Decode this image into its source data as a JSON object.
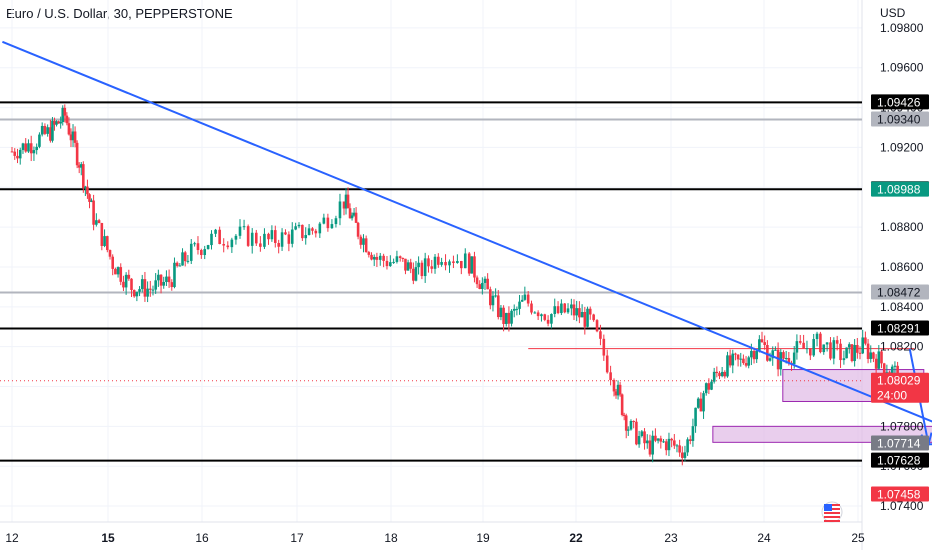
{
  "header": {
    "title": "Euro / U.S. Dollar, 30, PEPPERSTONE",
    "currency": "USD"
  },
  "price_axis": {
    "ticks": [
      "1.09800",
      "1.09600",
      "1.09400",
      "1.09200",
      "1.09000",
      "1.08800",
      "1.08600",
      "1.08400",
      "1.08200",
      "1.08000",
      "1.07800",
      "1.07600",
      "1.07400"
    ]
  },
  "time_axis": {
    "ticks": [
      {
        "label": "12",
        "bold": false
      },
      {
        "label": "15",
        "bold": true
      },
      {
        "label": "16",
        "bold": false
      },
      {
        "label": "17",
        "bold": false
      },
      {
        "label": "18",
        "bold": false
      },
      {
        "label": "19",
        "bold": false
      },
      {
        "label": "22",
        "bold": true
      },
      {
        "label": "23",
        "bold": false
      },
      {
        "label": "24",
        "bold": false
      },
      {
        "label": "25",
        "bold": false
      }
    ]
  },
  "levels": [
    {
      "price": 1.09426,
      "label": "1.09426",
      "line_color": "#000000",
      "badge_bg": "#000000",
      "badge_fg": "#ffffff"
    },
    {
      "price": 1.0934,
      "label": "1.09340",
      "line_color": "#b2b5be",
      "badge_bg": "#b2b5be",
      "badge_fg": "#131722"
    },
    {
      "price": 1.0899,
      "label": "1.08990",
      "line_color": "#000000",
      "badge_bg": "#000000",
      "badge_fg": "#ffffff"
    },
    {
      "price": 1.08472,
      "label": "1.08472",
      "line_color": "#b2b5be",
      "badge_bg": "#b2b5be",
      "badge_fg": "#131722"
    },
    {
      "price": 1.08291,
      "label": "1.08291",
      "line_color": "#000000",
      "badge_bg": "#000000",
      "badge_fg": "#ffffff"
    },
    {
      "price": 1.07628,
      "label": "1.07628",
      "line_color": "#000000",
      "badge_bg": "#000000",
      "badge_fg": "#ffffff"
    }
  ],
  "position": {
    "target_label": "1.08988",
    "entry_label": "1.07714",
    "stop_label": "1.07458",
    "target_color": "#089981",
    "entry_color": "#787b86",
    "stop_color": "#f23645"
  },
  "current_price": {
    "label": "1.08029",
    "countdown": "24:00",
    "color": "#f23645"
  },
  "colors": {
    "up": "#089981",
    "down": "#f23645",
    "trendline": "#2962ff",
    "zone_fill": "#e1bee7",
    "zone_stroke": "#9c27b0",
    "grid": "#f0f3fa"
  },
  "flag_icon": "us-flag-icon",
  "chart_data": {
    "type": "candlestick",
    "title": "Euro / U.S. Dollar, 30, PEPPERSTONE",
    "xlabel": "",
    "ylabel": "USD",
    "ylim": [
      1.0732,
      1.0994
    ],
    "grid": true,
    "x": [
      "12",
      "15",
      "16",
      "17",
      "18",
      "19",
      "22",
      "23",
      "24",
      "25"
    ],
    "price_path": [
      [
        12.0,
        1.0918
      ],
      [
        12.2,
        1.0922
      ],
      [
        12.4,
        1.0928
      ],
      [
        12.55,
        1.0936
      ],
      [
        12.7,
        1.0913
      ],
      [
        12.85,
        1.0885
      ],
      [
        13.05,
        1.0862
      ],
      [
        13.25,
        1.085
      ],
      [
        13.45,
        1.0849
      ],
      [
        13.65,
        1.0853
      ],
      [
        13.85,
        1.0866
      ],
      [
        14.1,
        1.0874
      ],
      [
        14.4,
        1.0876
      ],
      [
        14.7,
        1.0873
      ],
      [
        14.95,
        1.0876
      ],
      [
        15.2,
        1.0879
      ],
      [
        15.5,
        1.0893
      ],
      [
        15.65,
        1.0878
      ],
      [
        15.85,
        1.0864
      ],
      [
        16.1,
        1.0862
      ],
      [
        16.3,
        1.0857
      ],
      [
        16.55,
        1.0867
      ],
      [
        16.85,
        1.0862
      ],
      [
        17.05,
        1.0847
      ],
      [
        17.25,
        1.0832
      ],
      [
        17.45,
        1.0843
      ],
      [
        17.7,
        1.0836
      ],
      [
        17.95,
        1.0838
      ],
      [
        18.15,
        1.0833
      ],
      [
        18.4,
        1.0803
      ],
      [
        18.55,
        1.078
      ],
      [
        18.75,
        1.077
      ],
      [
        18.95,
        1.0772
      ],
      [
        19.15,
        1.0768
      ],
      [
        19.35,
        1.0797
      ],
      [
        19.55,
        1.081
      ],
      [
        19.75,
        1.0812
      ],
      [
        19.95,
        1.0822
      ],
      [
        20.15,
        1.0813
      ],
      [
        20.35,
        1.0818
      ],
      [
        20.6,
        1.0822
      ],
      [
        20.85,
        1.0815
      ],
      [
        21.05,
        1.082
      ],
      [
        21.25,
        1.0812
      ],
      [
        21.45,
        1.0805
      ]
    ],
    "trendline": {
      "from": [
        "11.9",
        1.0973
      ],
      "to": [
        "24.2",
        1.0736
      ]
    },
    "support_zones": [
      {
        "x0": "20.2",
        "x1": "21.7",
        "y0": 1.0805,
        "y1": 1.0796
      },
      {
        "x0": "19.45",
        "x1": "22.2",
        "y0": 1.07765,
        "y1": 1.07755
      }
    ],
    "projection": [
      [
        "21.55",
        1.0819
      ],
      [
        "21.75",
        1.0771
      ],
      [
        "21.95",
        1.0771
      ],
      [
        "22.55",
        1.0898
      ]
    ],
    "position_box": {
      "x0": "21.7",
      "x1": "23.3",
      "target": 1.08988,
      "entry": 1.07714,
      "stop": 1.07458
    },
    "horizontal_levels": [
      1.09426,
      1.0934,
      1.0899,
      1.08472,
      1.08291,
      1.07628
    ]
  }
}
